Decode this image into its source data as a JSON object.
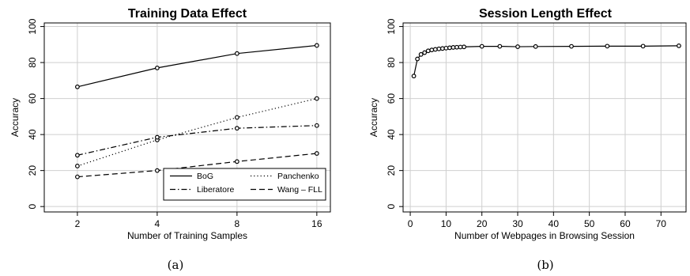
{
  "chart_data": [
    {
      "type": "line",
      "title": "Training Data Effect",
      "xlabel": "Number of Training Samples",
      "ylabel": "Accuracy",
      "x": [
        2,
        4,
        8,
        16
      ],
      "x_scale": "log2",
      "xticks": [
        2,
        4,
        8,
        16
      ],
      "xlim": [
        1.5,
        18
      ],
      "ylim": [
        -3,
        102
      ],
      "yticks": [
        0,
        20,
        40,
        60,
        80,
        100
      ],
      "grid": true,
      "legend": "bottom-right",
      "series": [
        {
          "name": "BoG",
          "dash": "solid",
          "values": [
            66.5,
            77,
            85,
            89.5
          ]
        },
        {
          "name": "Panchenko",
          "dash": "dotted",
          "values": [
            22.5,
            37,
            49.5,
            60
          ]
        },
        {
          "name": "Liberatore",
          "dash": "dashdot",
          "values": [
            28.5,
            38.5,
            43.5,
            45
          ]
        },
        {
          "name": "Wang – FLL",
          "dash": "dashed",
          "values": [
            16.5,
            20,
            25,
            29.5
          ]
        }
      ],
      "caption": "(a)"
    },
    {
      "type": "line",
      "title": "Session Length Effect",
      "xlabel": "Number of Webpages in Browsing Session",
      "ylabel": "Accuracy",
      "x": [
        1,
        2,
        3,
        4,
        5,
        6,
        7,
        8,
        9,
        10,
        11,
        12,
        13,
        14,
        15,
        20,
        25,
        30,
        35,
        45,
        55,
        65,
        75
      ],
      "xticks": [
        0,
        10,
        20,
        30,
        40,
        50,
        60,
        70
      ],
      "xlim": [
        -2,
        77
      ],
      "ylim": [
        -3,
        102
      ],
      "yticks": [
        0,
        20,
        40,
        60,
        80,
        100
      ],
      "grid": true,
      "series": [
        {
          "name": "",
          "dash": "solid",
          "values": [
            72.5,
            82,
            84.5,
            85.5,
            86.5,
            87,
            87.3,
            87.6,
            87.8,
            88,
            88.2,
            88.4,
            88.5,
            88.6,
            88.7,
            89,
            89,
            88.8,
            88.9,
            89,
            89.1,
            89.1,
            89.3
          ]
        }
      ],
      "caption": "(b)"
    }
  ]
}
